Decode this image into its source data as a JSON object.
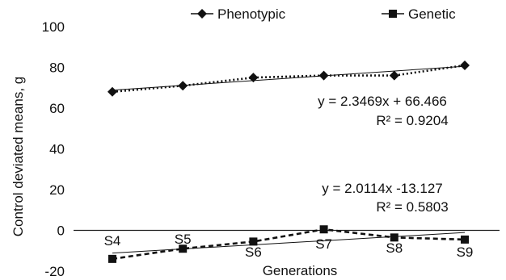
{
  "chart_data": {
    "type": "line",
    "title": "",
    "xlabel": "Generations",
    "ylabel": "Control deviated means, g",
    "ylim": [
      -20,
      100
    ],
    "yticks": [
      -20,
      0,
      20,
      40,
      60,
      80,
      100
    ],
    "categories": [
      "S4",
      "S5",
      "S6",
      "S7",
      "S8",
      "S9"
    ],
    "grid": false,
    "legend_position": "top",
    "series": [
      {
        "name": "Phenotypic",
        "marker": "diamond",
        "line_style": "dotted",
        "color": "#111111",
        "values": [
          68,
          71,
          75,
          76,
          76,
          81
        ],
        "trendline": {
          "slope": 2.3469,
          "intercept": 66.466,
          "equation": "y = 2.3469x + 66.466",
          "r2": "R² = 0.9204"
        }
      },
      {
        "name": "Genetic",
        "marker": "square",
        "line_style": "dashed",
        "color": "#111111",
        "values": [
          -14,
          -9,
          -5.5,
          0.5,
          -3.5,
          -4.5
        ],
        "trendline": {
          "slope": 2.0114,
          "intercept": -13.127,
          "equation": "y = 2.0114x -13.127",
          "r2": "R² = 0.5803"
        }
      }
    ]
  }
}
